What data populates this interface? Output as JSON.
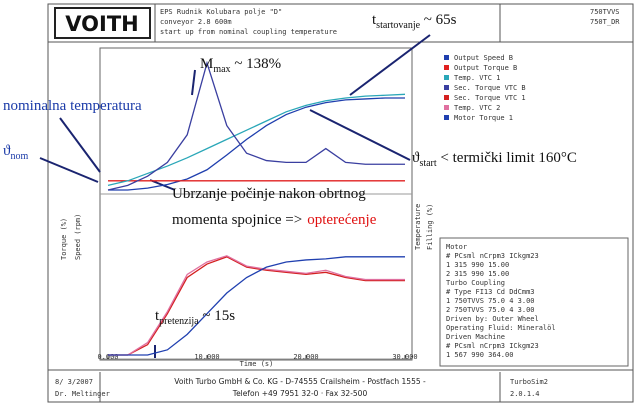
{
  "header": {
    "logo": "VOITH",
    "lines": [
      "EPS Rudnik Kolubara polje \"D\"",
      "conveyor 2.8 600m",
      "start up from nominal coupling temperature"
    ],
    "right": [
      "750TVVS",
      "750T_DR"
    ]
  },
  "chart_data": [
    {
      "type": "line",
      "x": [
        0,
        2,
        4,
        6,
        8,
        10,
        12,
        14,
        16,
        18,
        20,
        22,
        24,
        26,
        28,
        30
      ],
      "xlim": [
        0,
        30
      ],
      "ylim": [
        0,
        150
      ],
      "series": [
        {
          "name": "Output Speed B",
          "color": "#1f3fae",
          "values": [
            0,
            0,
            2,
            6,
            12,
            22,
            38,
            55,
            70,
            82,
            90,
            95,
            98,
            99,
            100,
            100
          ]
        },
        {
          "name": "Output Torque B",
          "color": "#e02020",
          "values": [
            10,
            10,
            10,
            10,
            10,
            10,
            10,
            10,
            10,
            10,
            10,
            10,
            10,
            10,
            10,
            10
          ]
        },
        {
          "name": "Temp. VTC 1",
          "color": "#2aa7b8",
          "values": [
            5,
            10,
            18,
            26,
            35,
            45,
            55,
            65,
            75,
            85,
            92,
            97,
            100,
            102,
            103,
            104
          ]
        },
        {
          "name": "Sec. Torque VTC B",
          "color": "#3a3fa0",
          "values": [
            0,
            5,
            15,
            30,
            60,
            138,
            70,
            40,
            32,
            30,
            30,
            45,
            30,
            28,
            28,
            28
          ]
        }
      ]
    },
    {
      "type": "line",
      "x": [
        0,
        2,
        4,
        6,
        8,
        10,
        12,
        14,
        16,
        18,
        20,
        22,
        24,
        26,
        28,
        30
      ],
      "xlim": [
        0,
        30
      ],
      "ylim": [
        0,
        150
      ],
      "xticks": [
        {
          "value": 0,
          "label": "0.000"
        },
        {
          "value": 10,
          "label": "10.000"
        },
        {
          "value": 20,
          "label": "20.000"
        },
        {
          "value": 30,
          "label": "30.000"
        }
      ],
      "xlabel": "Time (s)",
      "ylabels": [
        "Torque (%)",
        "Speed (rpm)"
      ],
      "y2labels": [
        "Temperature",
        "Filling (%)"
      ],
      "series": [
        {
          "name": "Sec. Torque VTC 1",
          "color": "#d42020",
          "values": [
            0,
            0,
            10,
            40,
            75,
            88,
            95,
            85,
            82,
            80,
            78,
            80,
            75,
            72,
            72,
            72
          ]
        },
        {
          "name": "Temp. VTC 2",
          "color": "#e070a0",
          "values": [
            0,
            0,
            12,
            42,
            78,
            90,
            96,
            86,
            83,
            81,
            79,
            82,
            76,
            73,
            73,
            73
          ]
        },
        {
          "name": "Motor Torque 1",
          "color": "#2040b0",
          "values": [
            0,
            0,
            0,
            5,
            20,
            40,
            60,
            75,
            85,
            90,
            92,
            93,
            95,
            95,
            95,
            95
          ]
        }
      ]
    }
  ],
  "annotations": [
    {
      "text": "t",
      "sub": "startovanje",
      "rest": " ~ 65s"
    },
    {
      "text": "M",
      "sub": "max",
      "rest": " ~ 138%"
    },
    {
      "text": "nominalna temperatura"
    },
    {
      "text": "ϑ",
      "sub": "nom"
    },
    {
      "text": "ϑ",
      "sub": "start",
      "rest": " < termički limit 160°C"
    },
    {
      "text": "Ubrzanje počinje nakon obrtnog"
    },
    {
      "text": "momenta spojnice =>",
      "highlight": "opterećenje"
    },
    {
      "text": "t",
      "sub": "pretenzija",
      "rest": " ~ 15s"
    }
  ],
  "info": [
    "Motor",
    "#  PCsml  nCrpm3  ICkgm23",
    "1  315    990    15.00",
    "2  315    990    15.00",
    "Turbo Coupling",
    "#  Type    FI13  Cd  DdCmm3",
    "1  750TVVS 75.0  4   3.00",
    "2  750TVVS 75.0  4   3.00",
    "Driven by:      Outer Wheel",
    "Operating Fluid: Mineralöl",
    "Driven Machine",
    "#  PCsml  nCrpm3  ICkgm23",
    "1  567    990    364.00"
  ],
  "footer": {
    "date": "8/ 3/2007",
    "author": "Dr. Meltinger",
    "company": "Voith Turbo GmbH & Co. KG - D-74555 Crailsheim - Postfach 1555 -",
    "phone": "Telefon +49 7951 32-0 · Fax 32-500",
    "software": [
      "TurboSim2",
      "2.0.1.4"
    ]
  }
}
